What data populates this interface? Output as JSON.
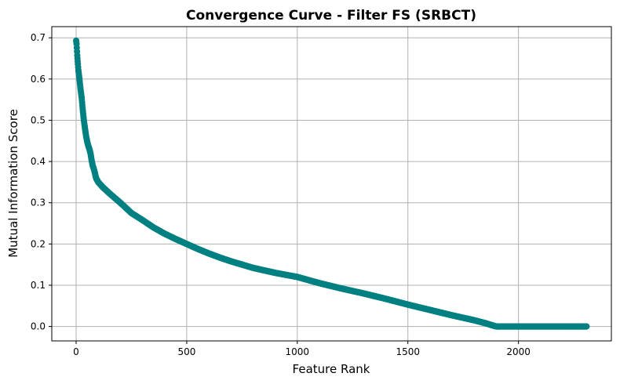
{
  "chart_data": {
    "type": "line",
    "title": "Convergence Curve - Filter FS (SRBCT)",
    "xlabel": "Feature Rank",
    "ylabel": "Mutual Information Score",
    "xlim": [
      -110,
      2420
    ],
    "ylim": [
      -0.035,
      0.727
    ],
    "xticks": [
      0,
      500,
      1000,
      1500,
      2000
    ],
    "yticks": [
      0.0,
      0.1,
      0.2,
      0.3,
      0.4,
      0.5,
      0.6,
      0.7
    ],
    "ytick_labels": [
      "0.0",
      "0.1",
      "0.2",
      "0.3",
      "0.4",
      "0.5",
      "0.6",
      "0.7"
    ],
    "grid": true,
    "marker": "o",
    "color": "#008080",
    "series": [
      {
        "x": [
          0,
          1,
          2,
          5,
          10,
          15,
          20,
          25,
          30,
          35,
          40,
          45,
          50,
          55,
          60,
          65,
          70,
          75,
          80,
          85,
          90,
          100,
          120,
          150,
          200,
          250,
          300,
          350,
          400,
          450,
          500,
          550,
          600,
          650,
          700,
          800,
          900,
          1000,
          1100,
          1200,
          1300,
          1400,
          1500,
          1600,
          1700,
          1800,
          1850,
          1880,
          1900,
          1950,
          2000,
          2100,
          2200,
          2308
        ],
        "y": [
          0.693,
          0.69,
          0.685,
          0.657,
          0.622,
          0.6,
          0.575,
          0.555,
          0.525,
          0.5,
          0.48,
          0.462,
          0.448,
          0.438,
          0.43,
          0.42,
          0.403,
          0.39,
          0.382,
          0.372,
          0.36,
          0.35,
          0.338,
          0.323,
          0.3,
          0.275,
          0.258,
          0.24,
          0.225,
          0.212,
          0.2,
          0.188,
          0.177,
          0.167,
          0.158,
          0.142,
          0.13,
          0.12,
          0.105,
          0.092,
          0.08,
          0.067,
          0.053,
          0.04,
          0.027,
          0.015,
          0.008,
          0.003,
          0.0,
          0.0,
          0.0,
          0.0,
          0.0,
          0.0
        ]
      }
    ]
  }
}
